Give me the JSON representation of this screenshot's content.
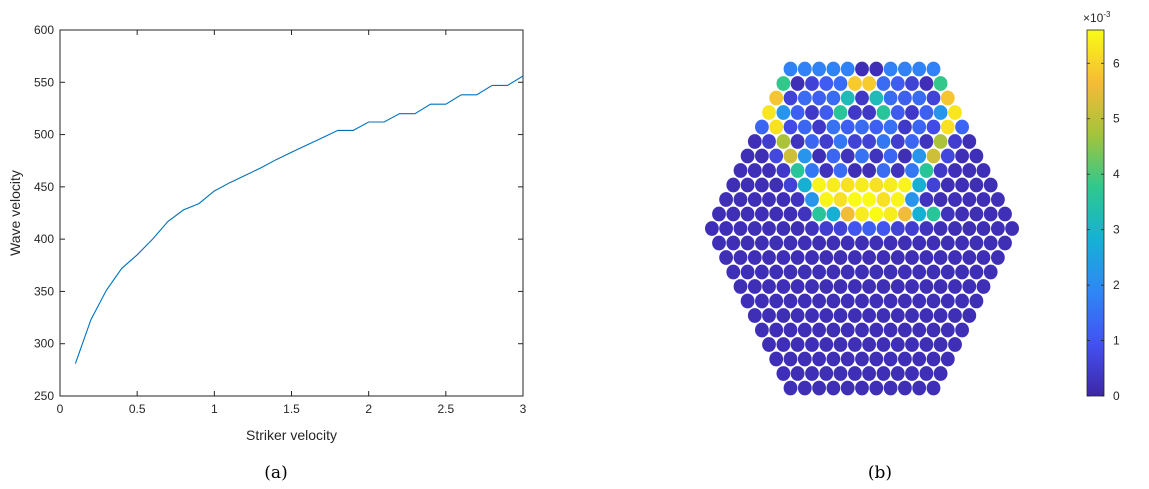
{
  "chart_data": [
    {
      "type": "line",
      "xlabel": "Striker velocity",
      "ylabel": "Wave velocity",
      "xlim": [
        0,
        3
      ],
      "ylim": [
        250,
        600
      ],
      "xticks": [
        "0",
        "0.5",
        "1",
        "1.5",
        "2",
        "2.5",
        "3"
      ],
      "yticks": [
        "250",
        "300",
        "350",
        "400",
        "450",
        "500",
        "550",
        "600"
      ],
      "grid": false,
      "caption": "(a)",
      "color": "#0072BD",
      "series": [
        {
          "x": [
            0.1,
            0.2,
            0.3,
            0.4,
            0.5,
            0.6,
            0.7,
            0.8,
            0.9,
            1.0,
            1.1,
            1.2,
            1.3,
            1.4,
            1.5,
            1.6,
            1.7,
            1.8,
            1.9,
            2.0,
            2.1,
            2.2,
            2.3,
            2.4,
            2.5,
            2.6,
            2.7,
            2.8,
            2.9,
            3.0
          ],
          "y": [
            281,
            323,
            351,
            372,
            385,
            400,
            417,
            428,
            434,
            446,
            454,
            461,
            468,
            476,
            483,
            490,
            497,
            504,
            504,
            512,
            512,
            520,
            520,
            529,
            529,
            538,
            538,
            547,
            547,
            556
          ]
        }
      ]
    },
    {
      "type": "heatmap",
      "caption": "(b)",
      "colorbar": {
        "min": 0,
        "max": 6.6,
        "ticks": [
          "0",
          "1",
          "2",
          "3",
          "4",
          "5",
          "6"
        ],
        "exponent_base": "×10",
        "exponent_power": "-3"
      },
      "colormap": [
        "#3e26a8",
        "#4352f1",
        "#2e87f6",
        "#16b1d4",
        "#2fc88e",
        "#a3c43b",
        "#f6bb37",
        "#f9fb15"
      ],
      "rows": [
        {
          "count": 11,
          "values": [
            1.8,
            1.8,
            1.8,
            1.8,
            1.8,
            0.2,
            0.2,
            1.8,
            1.8,
            1.8,
            1.8
          ]
        },
        {
          "count": 12,
          "values": [
            3.8,
            0.2,
            0.6,
            1.1,
            1.4,
            5.9,
            5.9,
            1.4,
            1.1,
            0.6,
            0.2,
            3.8
          ]
        },
        {
          "count": 13,
          "values": [
            5.8,
            0.6,
            1.4,
            1.2,
            1.4,
            3.2,
            0.4,
            3.2,
            1.4,
            1.2,
            1.4,
            0.6,
            5.8
          ]
        },
        {
          "count": 14,
          "values": [
            6.3,
            2.2,
            1.2,
            0.4,
            1.1,
            3.6,
            0.4,
            0.4,
            3.6,
            1.1,
            0.4,
            1.2,
            2.2,
            6.3
          ]
        },
        {
          "count": 15,
          "values": [
            1.3,
            6.2,
            0.8,
            1.3,
            0.4,
            1.5,
            1.2,
            1.4,
            1.2,
            1.5,
            0.4,
            1.3,
            0.8,
            6.2,
            1.3
          ]
        },
        {
          "count": 16,
          "values": [
            0.2,
            0.5,
            4.8,
            0.3,
            1.3,
            0.5,
            1.6,
            0.6,
            0.6,
            1.6,
            0.5,
            1.3,
            0.3,
            4.8,
            0.5,
            0.2
          ]
        },
        {
          "count": 17,
          "values": [
            0.2,
            0.2,
            0.7,
            5.2,
            2.2,
            0.2,
            1.3,
            0.3,
            1.5,
            0.3,
            1.3,
            0.2,
            2.2,
            5.2,
            0.7,
            0.2,
            0.2
          ]
        },
        {
          "count": 18,
          "values": [
            0.2,
            0.2,
            0.2,
            0.4,
            3.6,
            1.6,
            0.3,
            1.4,
            0.2,
            0.2,
            1.4,
            0.3,
            1.6,
            3.6,
            0.4,
            0.2,
            0.2,
            0.2
          ]
        },
        {
          "count": 19,
          "values": [
            0.2,
            0.2,
            0.2,
            0.2,
            0.6,
            2.8,
            6.5,
            6.4,
            6.2,
            6.4,
            6.2,
            6.4,
            6.5,
            2.8,
            0.6,
            0.2,
            0.2,
            0.2,
            0.2
          ]
        },
        {
          "count": 20,
          "values": [
            0.2,
            0.2,
            0.2,
            0.2,
            0.2,
            0.3,
            2.2,
            6.5,
            6.2,
            6.6,
            6.6,
            6.2,
            6.5,
            2.2,
            0.3,
            0.2,
            0.2,
            0.2,
            0.2,
            0.2
          ]
        },
        {
          "count": 21,
          "values": [
            0.2,
            0.2,
            0.2,
            0.2,
            0.2,
            0.2,
            0.3,
            3.6,
            2.8,
            5.6,
            6.4,
            6.6,
            6.4,
            5.6,
            2.8,
            3.6,
            0.3,
            0.2,
            0.2,
            0.2,
            0.2
          ]
        },
        {
          "count": 22,
          "values": [
            0.2,
            0.2,
            0.2,
            0.2,
            0.2,
            0.2,
            0.2,
            0.3,
            0.5,
            0.6,
            1.0,
            1.2,
            1.0,
            0.6,
            0.5,
            0.3,
            0.2,
            0.2,
            0.2,
            0.2,
            0.2,
            0.2
          ]
        },
        {
          "count": 21,
          "values": [
            0.2,
            0.2,
            0.2,
            0.2,
            0.2,
            0.2,
            0.2,
            0.2,
            0.2,
            0.2,
            0.2,
            0.2,
            0.2,
            0.2,
            0.2,
            0.2,
            0.2,
            0.2,
            0.2,
            0.2,
            0.2
          ]
        },
        {
          "count": 20,
          "values": "uniform:0.2"
        },
        {
          "count": 19,
          "values": "uniform:0.2"
        },
        {
          "count": 18,
          "values": "uniform:0.2"
        },
        {
          "count": 17,
          "values": "uniform:0.2"
        },
        {
          "count": 16,
          "values": "uniform:0.2"
        },
        {
          "count": 15,
          "values": "uniform:0.2"
        },
        {
          "count": 14,
          "values": "uniform:0.2"
        },
        {
          "count": 13,
          "values": "uniform:0.2"
        },
        {
          "count": 12,
          "values": "uniform:0.2"
        },
        {
          "count": 11,
          "values": "uniform:0.2"
        }
      ]
    }
  ]
}
